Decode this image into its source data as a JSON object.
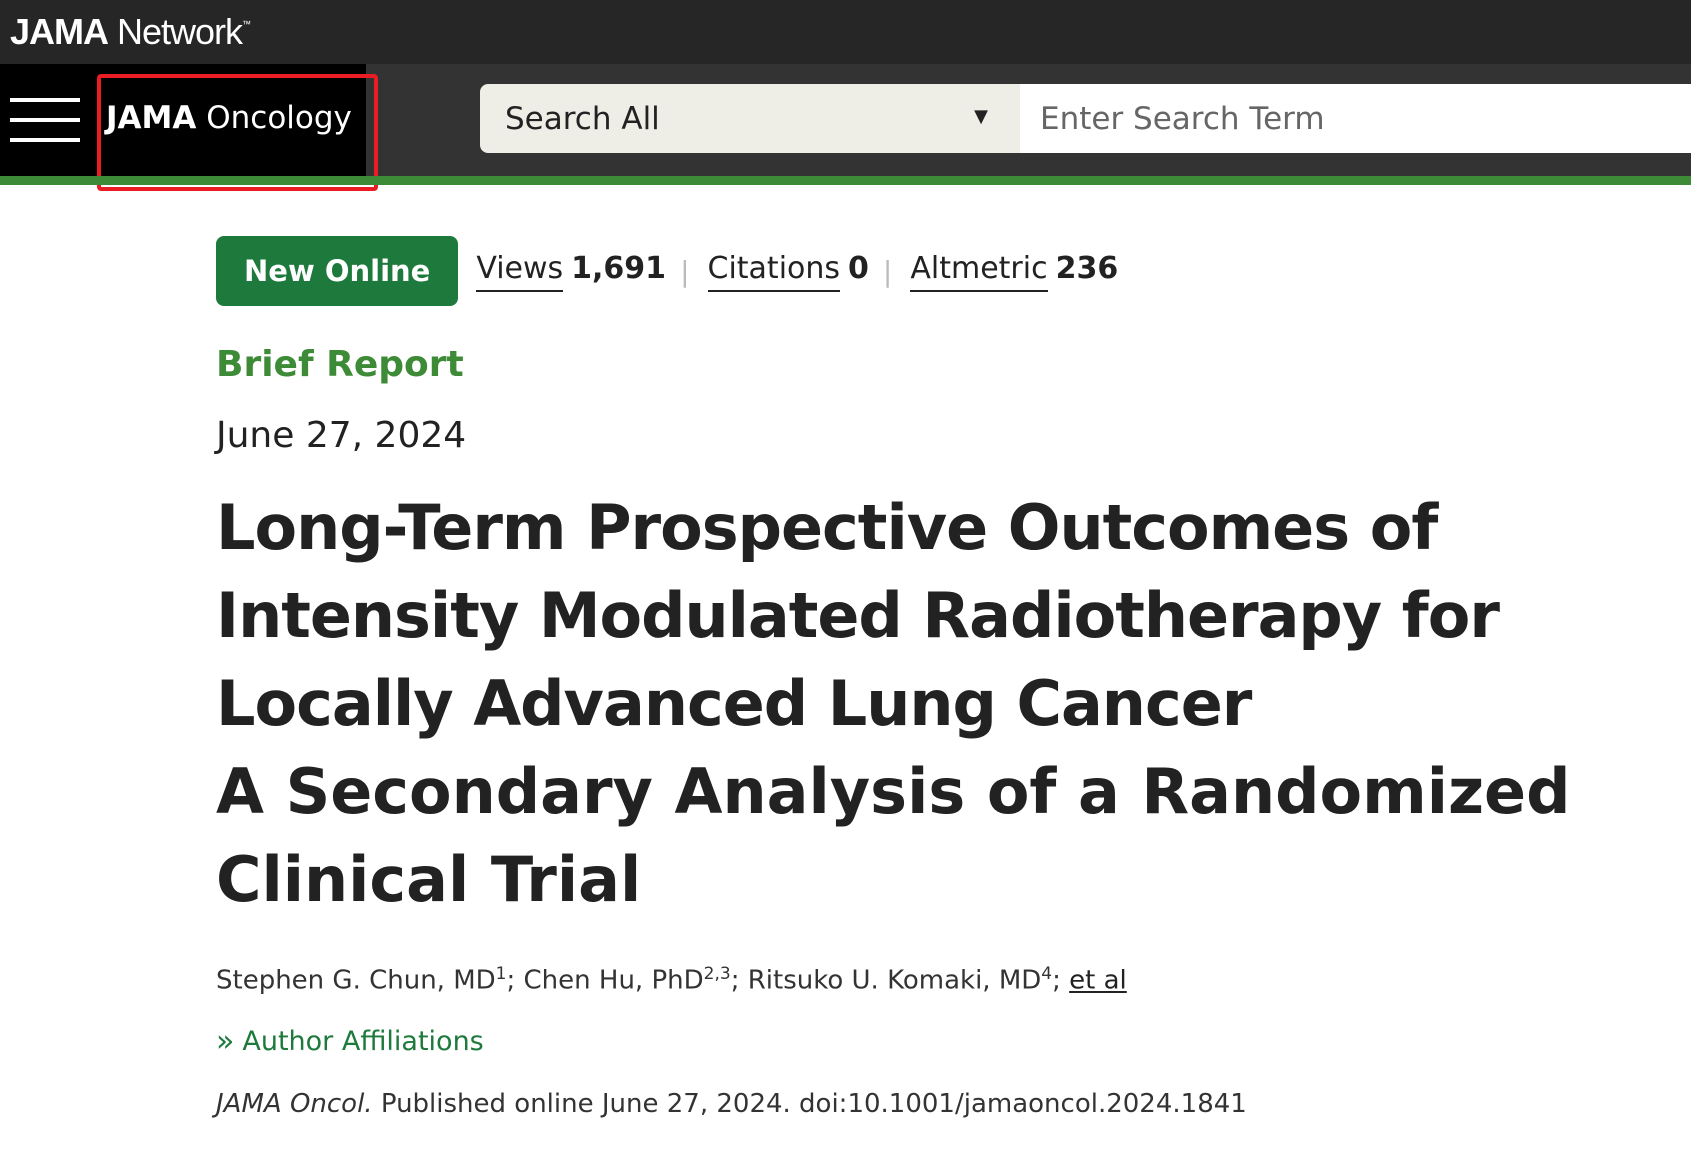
{
  "network": {
    "logo_bold": "JAMA",
    "logo_rest": " Network",
    "tm": "™"
  },
  "journal": {
    "logo_bold": "JAMA",
    "logo_rest": " Oncology"
  },
  "search": {
    "scope": "Search All",
    "caret": "▼",
    "placeholder": "Enter Search Term"
  },
  "meta": {
    "badge": "New Online",
    "views_label": "Views",
    "views_value": "1,691",
    "citations_label": "Citations",
    "citations_value": "0",
    "altmetric_label": "Altmetric",
    "altmetric_value": "236",
    "separator": "|"
  },
  "article": {
    "type": "Brief Report",
    "date": "June 27, 2024",
    "title": "Long-Term Prospective Outcomes of Intensity Modulated Radiotherapy for Locally Advanced Lung Cancer",
    "subtitle": "A Secondary Analysis of a Randomized Clinical Trial",
    "authors": [
      {
        "name": "Stephen G. Chun, MD",
        "aff": "1"
      },
      {
        "name": "Chen Hu, PhD",
        "aff": "2,3"
      },
      {
        "name": "Ritsuko U. Komaki, MD",
        "aff": "4"
      }
    ],
    "et_al": "et al",
    "affiliations_label": "Author Affiliations",
    "affiliations_icon": "»",
    "citation_journal": "JAMA Oncol.",
    "citation_rest": " Published online June 27, 2024. doi:10.1001/jamaoncol.2024.1841"
  },
  "colors": {
    "accent_green": "#3d8b37",
    "badge_green": "#1e7a3c",
    "highlight_red": "#ea1c24"
  }
}
